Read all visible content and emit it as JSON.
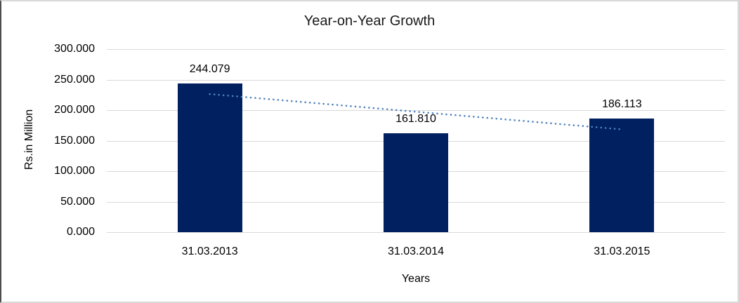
{
  "frame": {
    "background": "#ffffff",
    "border_color": "#d9d9d9",
    "left_edge_color": "#4d4d4d"
  },
  "chart_data": {
    "type": "bar",
    "title": "Year-on-Year Growth",
    "xlabel": "Years",
    "ylabel": "Rs.in Million",
    "categories": [
      "31.03.2013",
      "31.03.2014",
      "31.03.2015"
    ],
    "values": [
      244.079,
      161.81,
      186.113
    ],
    "data_labels": [
      "244.079",
      "161.810",
      "186.113"
    ],
    "ylim": [
      0,
      300
    ],
    "ytick_interval": 50,
    "ytick_labels": [
      "0.000",
      "50.000",
      "100.000",
      "150.000",
      "200.000",
      "250.000",
      "300.000"
    ],
    "grid": true,
    "legend": "none",
    "colors": {
      "bar": "#002060",
      "trendline": "#4f81bd",
      "gridline": "#d9d9d9",
      "text": "#000000"
    },
    "trendline": {
      "type": "linear",
      "line_style": "dotted",
      "fit_values": [
        226.3,
        197.3,
        168.4
      ]
    }
  }
}
